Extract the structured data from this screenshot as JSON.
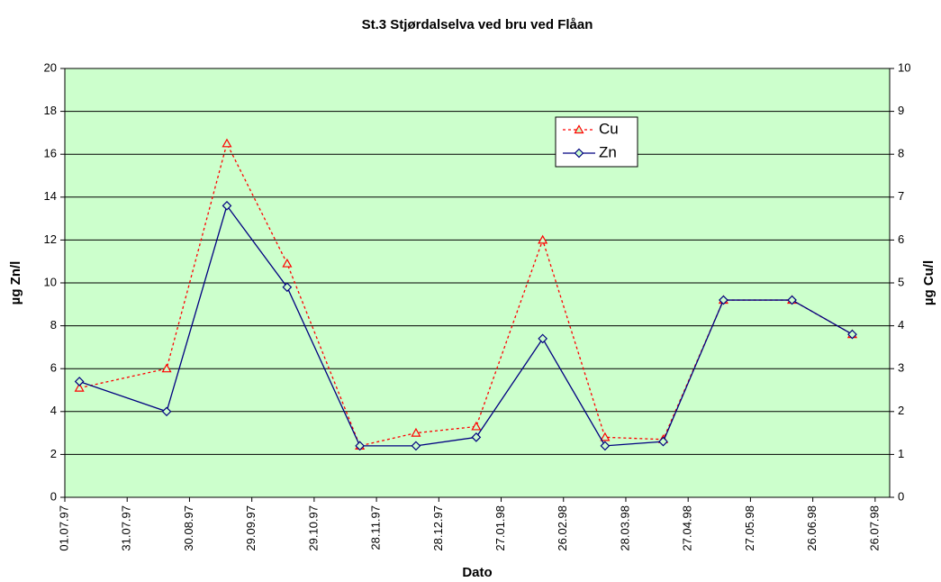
{
  "chart_data": {
    "type": "line",
    "title": "St.3 Stjørdalselva ved bru ved Flåan",
    "xlabel": "Dato",
    "ylabel": "µg Zn/l",
    "y2label": "µg Cu/l",
    "x": [
      "08.07.97",
      "19.08.97",
      "17.09.97",
      "16.10.97",
      "20.11.97",
      "17.12.97",
      "15.01.98",
      "16.02.98",
      "18.03.98",
      "15.04.98",
      "14.05.98",
      "16.06.98",
      "15.07.98"
    ],
    "series": [
      {
        "name": "Cu",
        "color": "#ff0000",
        "axis": "y2",
        "marker": "triangle",
        "dash": true,
        "values": [
          2.55,
          3.0,
          8.25,
          5.45,
          1.2,
          1.5,
          1.65,
          6.0,
          1.4,
          1.35,
          4.6,
          4.6,
          3.8
        ]
      },
      {
        "name": "Zn",
        "color": "#000080",
        "marker": "diamond",
        "dash": false,
        "values": [
          5.4,
          4.0,
          13.6,
          9.8,
          2.4,
          2.4,
          2.8,
          7.4,
          2.4,
          2.6,
          9.2,
          9.2,
          7.6
        ]
      }
    ],
    "xlim": [
      "01.07.97",
      "02.08.98"
    ],
    "xticks": [
      "01.07.97",
      "31.07.97",
      "30.08.97",
      "29.09.97",
      "29.10.97",
      "28.11.97",
      "28.12.97",
      "27.01.98",
      "26.02.98",
      "28.03.98",
      "27.04.98",
      "27.05.98",
      "26.06.98",
      "26.07.98"
    ],
    "ylim": [
      0,
      20
    ],
    "yticks": [
      0,
      2,
      4,
      6,
      8,
      10,
      12,
      14,
      16,
      18,
      20
    ],
    "y2lim": [
      0,
      10
    ],
    "y2ticks": [
      0,
      1,
      2,
      3,
      4,
      5,
      6,
      7,
      8,
      9,
      10
    ],
    "grid": true,
    "background": "#ccffcc",
    "legend": "top-right"
  }
}
